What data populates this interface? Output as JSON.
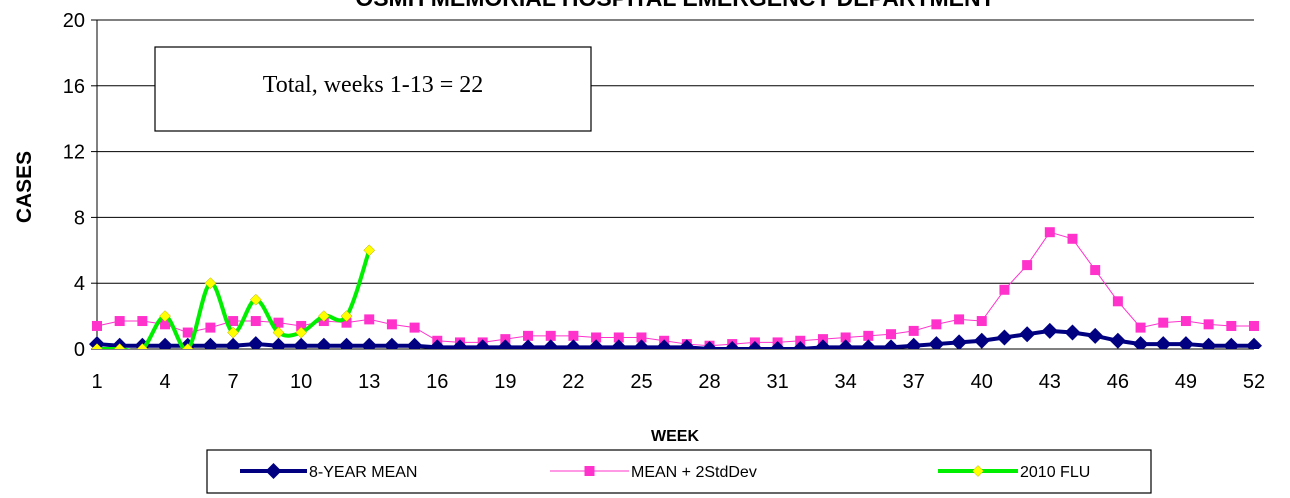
{
  "chart_data": {
    "type": "line",
    "title": "OSMH MEMORIAL HOSPITAL EMERGENCY DEPARTMENT",
    "xlabel": "WEEK",
    "ylabel": "CASES",
    "xlim": [
      1,
      52
    ],
    "ylim": [
      0,
      20
    ],
    "y_ticks": [
      0,
      4,
      8,
      12,
      16,
      20
    ],
    "x_ticks": [
      1,
      4,
      7,
      10,
      13,
      16,
      19,
      22,
      25,
      28,
      31,
      34,
      37,
      40,
      43,
      46,
      49,
      52
    ],
    "grid": true,
    "legend_position": "bottom",
    "annotation": "Total, weeks 1-13 = 22",
    "series": [
      {
        "name": "8-YEAR MEAN",
        "color": "#000080",
        "marker": "diamond",
        "x": [
          1,
          2,
          3,
          4,
          5,
          6,
          7,
          8,
          9,
          10,
          11,
          12,
          13,
          14,
          15,
          16,
          17,
          18,
          19,
          20,
          21,
          22,
          23,
          24,
          25,
          26,
          27,
          28,
          29,
          30,
          31,
          32,
          33,
          34,
          35,
          36,
          37,
          38,
          39,
          40,
          41,
          42,
          43,
          44,
          45,
          46,
          47,
          48,
          49,
          50,
          51,
          52
        ],
        "values": [
          0.3,
          0.2,
          0.2,
          0.2,
          0.2,
          0.2,
          0.2,
          0.3,
          0.2,
          0.2,
          0.2,
          0.2,
          0.2,
          0.2,
          0.2,
          0.1,
          0.1,
          0.1,
          0.1,
          0.1,
          0.1,
          0.1,
          0.1,
          0.1,
          0.1,
          0.1,
          0.1,
          0.0,
          0.0,
          0.0,
          0.0,
          0.0,
          0.1,
          0.1,
          0.1,
          0.1,
          0.2,
          0.3,
          0.4,
          0.5,
          0.7,
          0.9,
          1.1,
          1.0,
          0.8,
          0.5,
          0.3,
          0.3,
          0.3,
          0.2,
          0.2,
          0.2
        ]
      },
      {
        "name": "MEAN + 2StdDev",
        "color": "#ff33cc",
        "marker": "square",
        "x": [
          1,
          2,
          3,
          4,
          5,
          6,
          7,
          8,
          9,
          10,
          11,
          12,
          13,
          14,
          15,
          16,
          17,
          18,
          19,
          20,
          21,
          22,
          23,
          24,
          25,
          26,
          27,
          28,
          29,
          30,
          31,
          32,
          33,
          34,
          35,
          36,
          37,
          38,
          39,
          40,
          41,
          42,
          43,
          44,
          45,
          46,
          47,
          48,
          49,
          50,
          51,
          52
        ],
        "values": [
          1.4,
          1.7,
          1.7,
          1.5,
          1.0,
          1.3,
          1.7,
          1.7,
          1.6,
          1.4,
          1.7,
          1.6,
          1.8,
          1.5,
          1.3,
          0.5,
          0.4,
          0.4,
          0.6,
          0.8,
          0.8,
          0.8,
          0.7,
          0.7,
          0.7,
          0.5,
          0.3,
          0.2,
          0.3,
          0.4,
          0.4,
          0.5,
          0.6,
          0.7,
          0.8,
          0.9,
          1.1,
          1.5,
          1.8,
          1.7,
          3.6,
          5.1,
          7.1,
          6.7,
          4.8,
          2.9,
          1.3,
          1.6,
          1.7,
          1.5,
          1.4,
          1.4
        ]
      },
      {
        "name": "2010  FLU",
        "color": "#00ee00",
        "marker": "diamond",
        "marker_color": "#ffff00",
        "x": [
          1,
          2,
          3,
          4,
          5,
          6,
          7,
          8,
          9,
          10,
          11,
          12,
          13
        ],
        "values": [
          0,
          0,
          0,
          2,
          0,
          4,
          1,
          3,
          1,
          1,
          2,
          2,
          6
        ]
      }
    ]
  }
}
